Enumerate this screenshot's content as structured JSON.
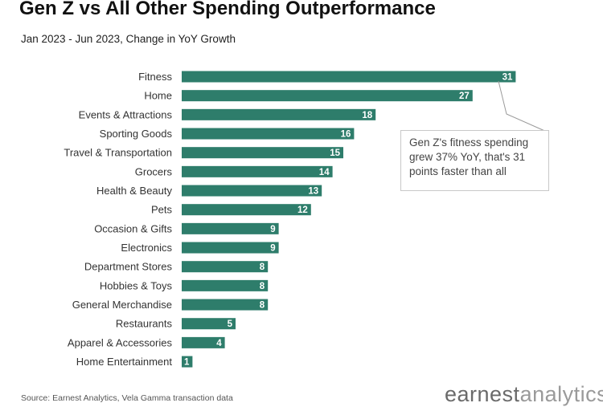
{
  "header": {
    "title": "Gen Z vs All Other Spending Outperformance",
    "subtitle": "Jan 2023 - Jun 2023, Change in YoY Growth"
  },
  "callout": {
    "text": "Gen Z's fitness spending grew 37% YoY, that's 31 points faster than all"
  },
  "footer": {
    "source": "Source: Earnest Analytics, Vela Gamma transaction data",
    "logo_part1": "earnest",
    "logo_part2": "analytics"
  },
  "colors": {
    "bar": "#2e7d6b",
    "value_text": "#ffffff"
  },
  "chart_data": {
    "type": "bar",
    "orientation": "horizontal",
    "title": "Gen Z vs All Other Spending Outperformance",
    "subtitle": "Jan 2023 - Jun 2023, Change in YoY Growth",
    "categories": [
      "Fitness",
      "Home",
      "Events & Attractions",
      "Sporting Goods",
      "Travel & Transportation",
      "Grocers",
      "Health & Beauty",
      "Pets",
      "Occasion & Gifts",
      "Electronics",
      "Department Stores",
      "Hobbies & Toys",
      "General Merchandise",
      "Restaurants",
      "Apparel & Accessories",
      "Home Entertainment"
    ],
    "values": [
      31,
      27,
      18,
      16,
      15,
      14,
      13,
      12,
      9,
      9,
      8,
      8,
      8,
      5,
      4,
      1
    ],
    "data_labels": true,
    "grid": false,
    "legend": "none"
  }
}
